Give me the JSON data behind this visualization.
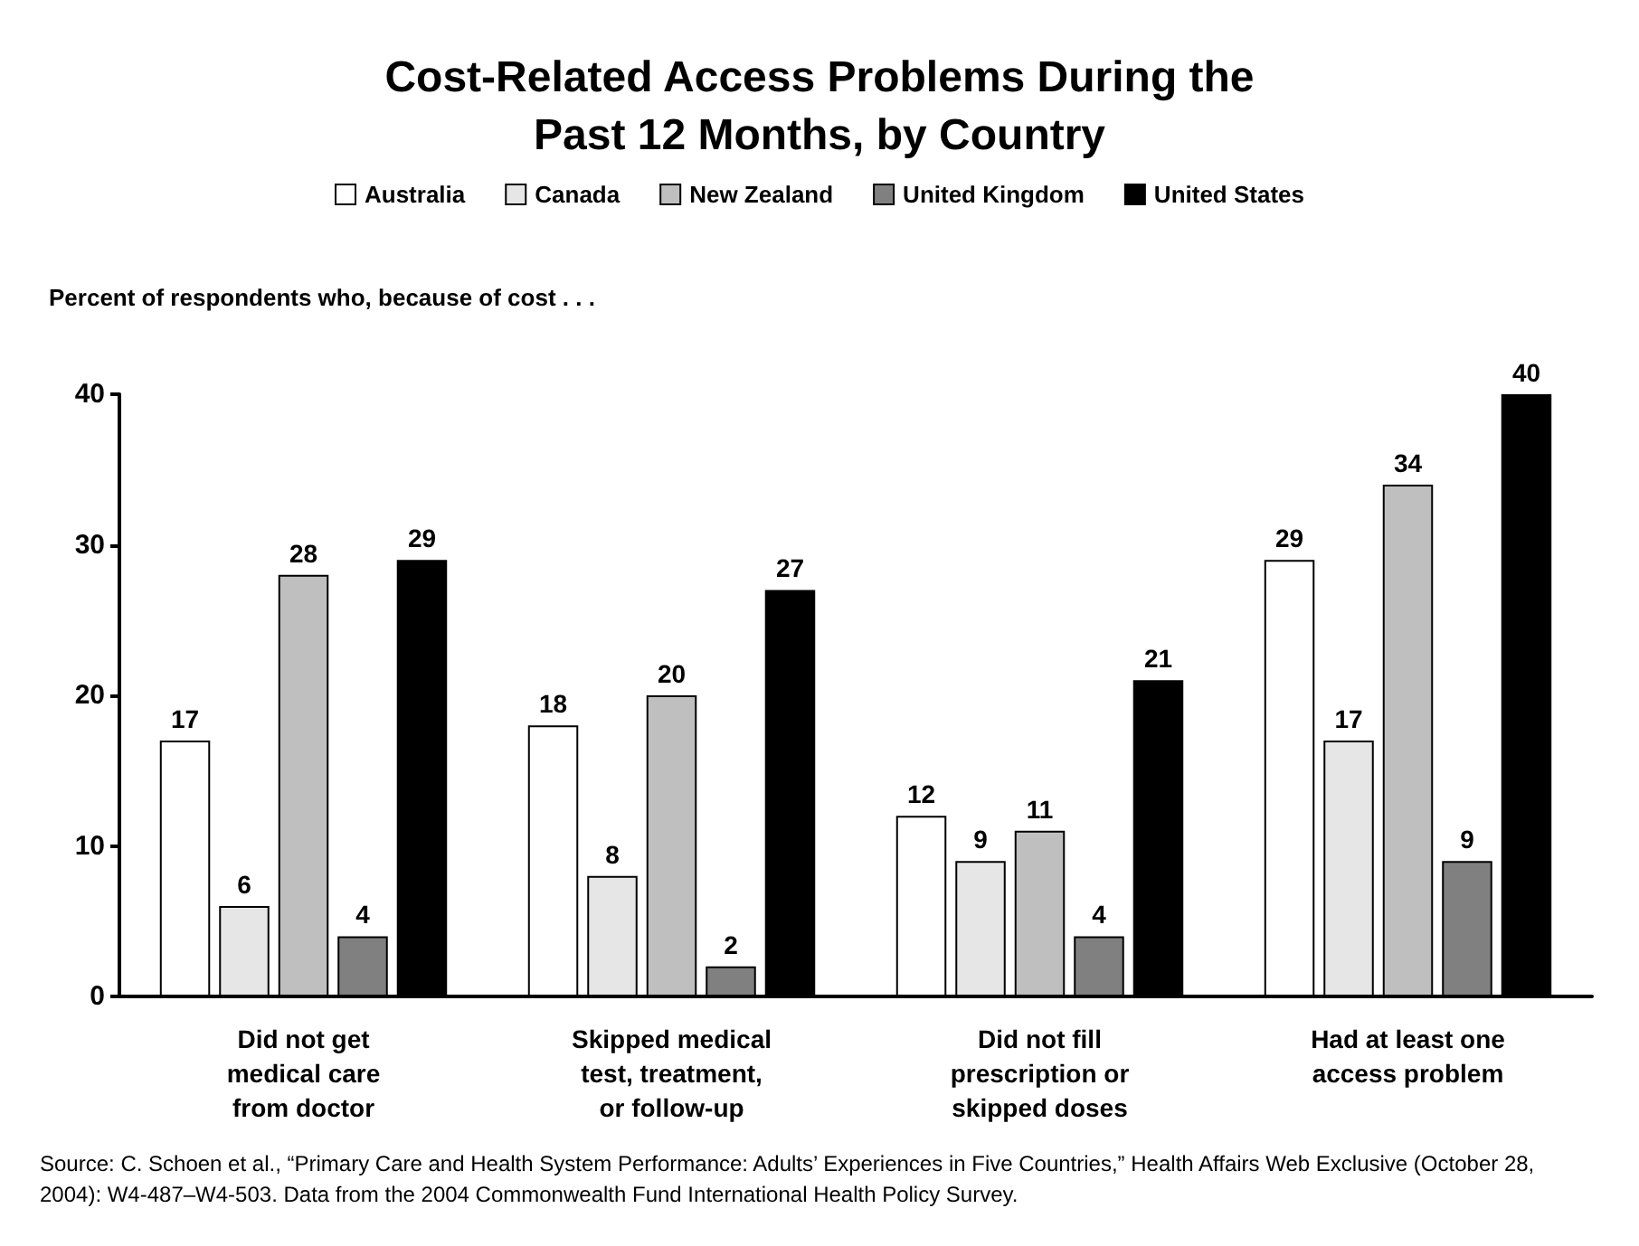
{
  "chart_data": {
    "type": "bar",
    "title": "Cost-Related Access Problems During the\nPast 12 Months, by Country",
    "ylabel": "Percent of respondents who, because of cost . . .",
    "categories": [
      "Did not get\nmedical care\nfrom doctor",
      "Skipped medical\ntest, treatment,\nor follow-up",
      "Did not fill\nprescription or\nskipped doses",
      "Had at least one\naccess problem"
    ],
    "series": [
      {
        "name": "Australia",
        "color": "#ffffff",
        "values": [
          17,
          18,
          12,
          29
        ]
      },
      {
        "name": "Canada",
        "color": "#e6e6e6",
        "values": [
          6,
          8,
          9,
          17
        ]
      },
      {
        "name": "New Zealand",
        "color": "#bfbfbf",
        "values": [
          28,
          20,
          11,
          34
        ]
      },
      {
        "name": "United Kingdom",
        "color": "#808080",
        "values": [
          4,
          2,
          4,
          9
        ]
      },
      {
        "name": "United States",
        "color": "#000000",
        "values": [
          29,
          27,
          21,
          40
        ]
      }
    ],
    "ylim": [
      0,
      40
    ],
    "yticks": [
      0,
      10,
      20,
      30,
      40
    ],
    "grid": false,
    "legend": "top",
    "data_labels": true,
    "annotations": [
      "Source: C. Schoen et al., “Primary Care and Health System Performance: Adults’ Experiences in Five Countries,” Health Affairs Web Exclusive (October 28, 2004): W4-487–W4-503. Data from the 2004 Commonwealth Fund International Health Policy Survey."
    ]
  }
}
